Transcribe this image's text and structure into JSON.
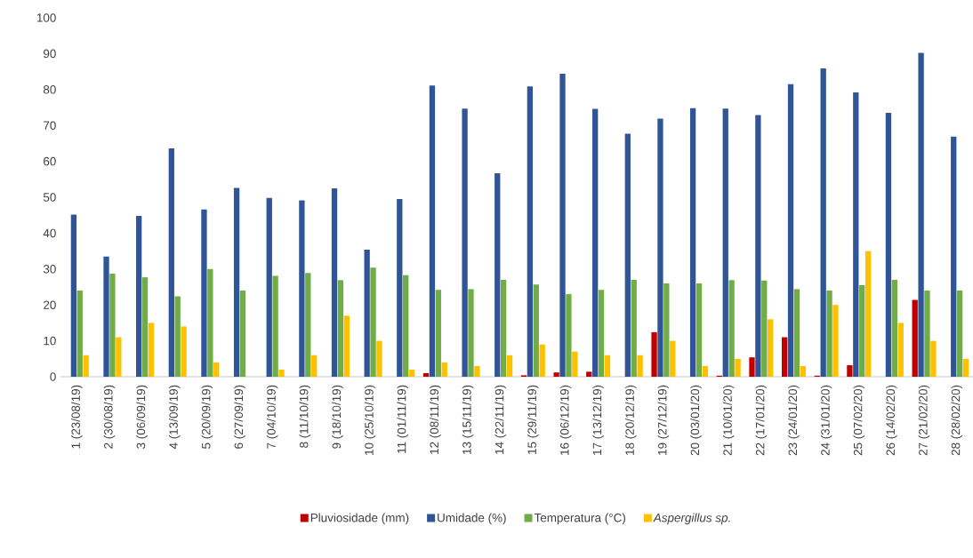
{
  "chart_data": {
    "type": "bar",
    "categories": [
      "1 (23/08/19)",
      "2 (30/08/19)",
      "3 (06/09/19)",
      "4 (13/09/19)",
      "5 (20/09/19)",
      "6 (27/09/19)",
      "7 (04/10/19)",
      "8 (11/10/19)",
      "9 (18/10/19)",
      "10 (25/10/19)",
      "11 (01/11/19)",
      "12 (08/11/19)",
      "13 (15/11/19)",
      "14 (22/11/19)",
      "15 (29/11/19)",
      "16 (06/12/19)",
      "17 (13/12/19)",
      "18 (20/12/19)",
      "19 (27/12/19)",
      "20 (03/01/20)",
      "21 (10/01/20)",
      "22 (17/01/20)",
      "23 (24/01/20)",
      "24 (31/01/20)",
      "25 (07/02/20)",
      "26 (14/02/20)",
      "27 (21/02/20)",
      "28 (28/02/20)"
    ],
    "series": [
      {
        "name": "Pluviosidade (mm)",
        "color": "#c00000",
        "values": [
          0,
          0,
          0,
          0,
          0,
          0,
          0,
          0,
          0,
          0,
          0,
          1.0,
          0,
          0,
          0.4,
          1.2,
          1.4,
          0,
          12.4,
          0,
          0.3,
          5.4,
          11.0,
          0.3,
          3.2,
          0,
          21.4,
          0
        ]
      },
      {
        "name": "Umidade (%)",
        "color": "#2f5597",
        "values": [
          45.2,
          33.5,
          44.8,
          63.6,
          46.6,
          52.6,
          49.8,
          49.1,
          52.5,
          35.4,
          49.5,
          81.1,
          74.7,
          56.7,
          80.9,
          84.4,
          74.6,
          67.7,
          71.9,
          74.8,
          74.7,
          72.9,
          81.5,
          85.9,
          79.2,
          73.5,
          90.2,
          66.9
        ]
      },
      {
        "name": "Temperatura (°C)",
        "color": "#70ad47",
        "values": [
          24,
          28.7,
          27.7,
          22.4,
          30,
          24,
          28.1,
          28.9,
          26.9,
          30.4,
          28.3,
          24.2,
          24.4,
          27,
          25.7,
          23,
          24.2,
          27,
          26,
          26,
          26.9,
          26.8,
          24.4,
          24,
          25.5,
          27,
          24,
          24
        ]
      },
      {
        "name": "*Aspergillus sp.*",
        "color": "#ffc000",
        "values": [
          6,
          11,
          15,
          14,
          4,
          0,
          2,
          6,
          17,
          10,
          2,
          4,
          3,
          6,
          9,
          7,
          6,
          6,
          10,
          3,
          5,
          16,
          3,
          20,
          35,
          15,
          10,
          5
        ]
      }
    ],
    "ylim": [
      0,
      100
    ],
    "yticks": [
      0,
      10,
      20,
      30,
      40,
      50,
      60,
      70,
      80,
      90,
      100
    ],
    "legend": "bottom"
  }
}
